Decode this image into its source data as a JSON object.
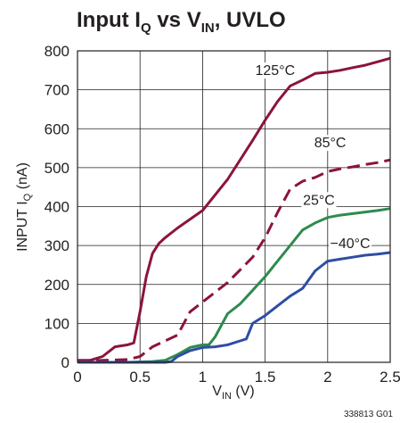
{
  "chart_data": {
    "type": "line",
    "title": {
      "main": "Input I",
      "main_sub": "Q",
      "mid": " vs V",
      "mid_sub": "IN",
      "end": ", UVLO"
    },
    "xlabel": {
      "main": "V",
      "sub": "IN",
      "end": " (V)"
    },
    "ylabel": {
      "main": "INPUT I",
      "sub": "Q",
      "end": " (nA)"
    },
    "xlim": [
      0,
      2.5
    ],
    "ylim": [
      0,
      800
    ],
    "x_ticks": [
      "0",
      "0.5",
      "1",
      "1.5",
      "2",
      "2.5"
    ],
    "y_ticks": [
      "0",
      "100",
      "200",
      "300",
      "400",
      "500",
      "600",
      "700",
      "800"
    ],
    "grid": true,
    "series": [
      {
        "name": "125°C",
        "color": "#8b1538",
        "dash": false,
        "x": [
          0,
          0.1,
          0.2,
          0.3,
          0.4,
          0.45,
          0.5,
          0.55,
          0.6,
          0.65,
          0.7,
          0.8,
          1.0,
          1.2,
          1.4,
          1.5,
          1.6,
          1.7,
          1.8,
          1.9,
          2.0,
          2.1,
          2.2,
          2.3,
          2.4,
          2.5
        ],
        "values": [
          5,
          5,
          15,
          40,
          45,
          50,
          130,
          220,
          280,
          305,
          320,
          345,
          390,
          470,
          570,
          622,
          670,
          710,
          725,
          742,
          745,
          750,
          757,
          763,
          772,
          781
        ]
      },
      {
        "name": "85°C",
        "color": "#8b1538",
        "dash": true,
        "x": [
          0,
          0.2,
          0.4,
          0.5,
          0.6,
          0.7,
          0.8,
          0.9,
          1.0,
          1.2,
          1.4,
          1.5,
          1.6,
          1.7,
          1.8,
          1.9,
          2.0,
          2.1,
          2.2,
          2.3,
          2.4,
          2.5
        ],
        "values": [
          3,
          5,
          7,
          15,
          40,
          55,
          70,
          130,
          155,
          205,
          270,
          320,
          385,
          445,
          465,
          475,
          490,
          497,
          502,
          508,
          513,
          520
        ]
      },
      {
        "name": "25°C",
        "color": "#2e8b4e",
        "dash": false,
        "x": [
          0,
          0.4,
          0.6,
          0.7,
          0.8,
          0.9,
          1.0,
          1.05,
          1.1,
          1.2,
          1.3,
          1.4,
          1.5,
          1.6,
          1.7,
          1.8,
          1.9,
          2.0,
          2.1,
          2.2,
          2.3,
          2.4,
          2.5
        ],
        "values": [
          0,
          0,
          2,
          5,
          20,
          38,
          45,
          45,
          65,
          125,
          150,
          185,
          220,
          260,
          300,
          340,
          358,
          372,
          378,
          382,
          386,
          390,
          395
        ]
      },
      {
        "name": "−40°C",
        "color": "#2e4ea3",
        "dash": false,
        "x": [
          0,
          0.7,
          0.75,
          0.8,
          0.9,
          1.0,
          1.1,
          1.2,
          1.3,
          1.35,
          1.4,
          1.5,
          1.6,
          1.7,
          1.8,
          1.9,
          2.0,
          2.1,
          2.2,
          2.3,
          2.4,
          2.5
        ],
        "values": [
          0,
          0,
          2,
          15,
          30,
          38,
          40,
          45,
          55,
          60,
          100,
          120,
          145,
          170,
          190,
          235,
          260,
          265,
          270,
          275,
          278,
          282
        ]
      }
    ],
    "series_labels": [
      "125°C",
      "85°C",
      "25°C",
      "−40°C"
    ],
    "figure_id": "338813 G01"
  }
}
